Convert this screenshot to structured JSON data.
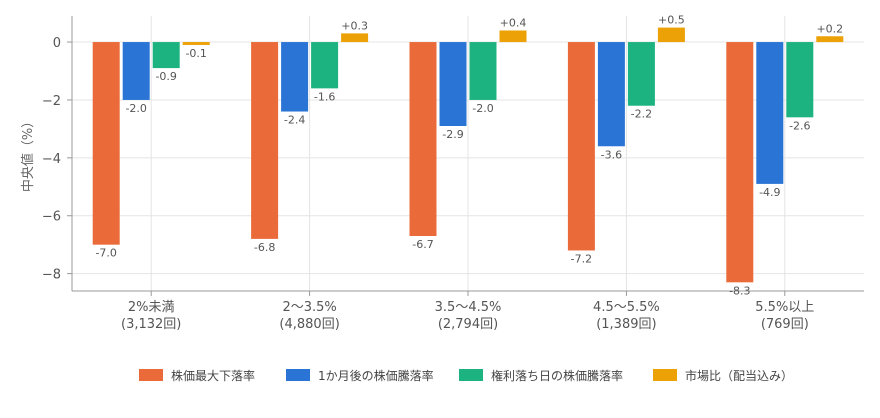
{
  "chart_data": {
    "type": "bar",
    "ylabel": "中央値（%）",
    "ylim": [
      -8.6,
      0.9
    ],
    "yticks": [
      0,
      -2,
      -4,
      -6,
      -8
    ],
    "ytick_labels": [
      "0",
      "−2",
      "−4",
      "−6",
      "−8"
    ],
    "grid": true,
    "legend_position": "bottom",
    "categories": [
      [
        "2%未満",
        "(3,132回)"
      ],
      [
        "2〜3.5%",
        "(4,880回)"
      ],
      [
        "3.5〜4.5%",
        "(2,794回)"
      ],
      [
        "4.5〜5.5%",
        "(1,389回)"
      ],
      [
        "5.5%以上",
        "(769回)"
      ]
    ],
    "series": [
      {
        "name": "株価最大下落率",
        "color": "#ea6b39",
        "values": [
          -7.0,
          -6.8,
          -6.7,
          -7.2,
          -8.3
        ],
        "labels": [
          "-7.0",
          "-6.8",
          "-6.7",
          "-7.2",
          "-8.3"
        ]
      },
      {
        "name": "1か月後の株価騰落率",
        "color": "#2a74d6",
        "values": [
          -2.0,
          -2.4,
          -2.9,
          -3.6,
          -4.9
        ],
        "labels": [
          "-2.0",
          "-2.4",
          "-2.9",
          "-3.6",
          "-4.9"
        ]
      },
      {
        "name": "権利落ち日の株価騰落率",
        "color": "#1db380",
        "values": [
          -0.9,
          -1.6,
          -2.0,
          -2.2,
          -2.6
        ],
        "labels": [
          "-0.9",
          "-1.6",
          "-2.0",
          "-2.2",
          "-2.6"
        ]
      },
      {
        "name": "市場比（配当込み）",
        "color": "#eca106",
        "values": [
          -0.1,
          0.3,
          0.4,
          0.5,
          0.2
        ],
        "labels": [
          "-0.1",
          "+0.3",
          "+0.4",
          "+0.5",
          "+0.2"
        ]
      }
    ]
  }
}
